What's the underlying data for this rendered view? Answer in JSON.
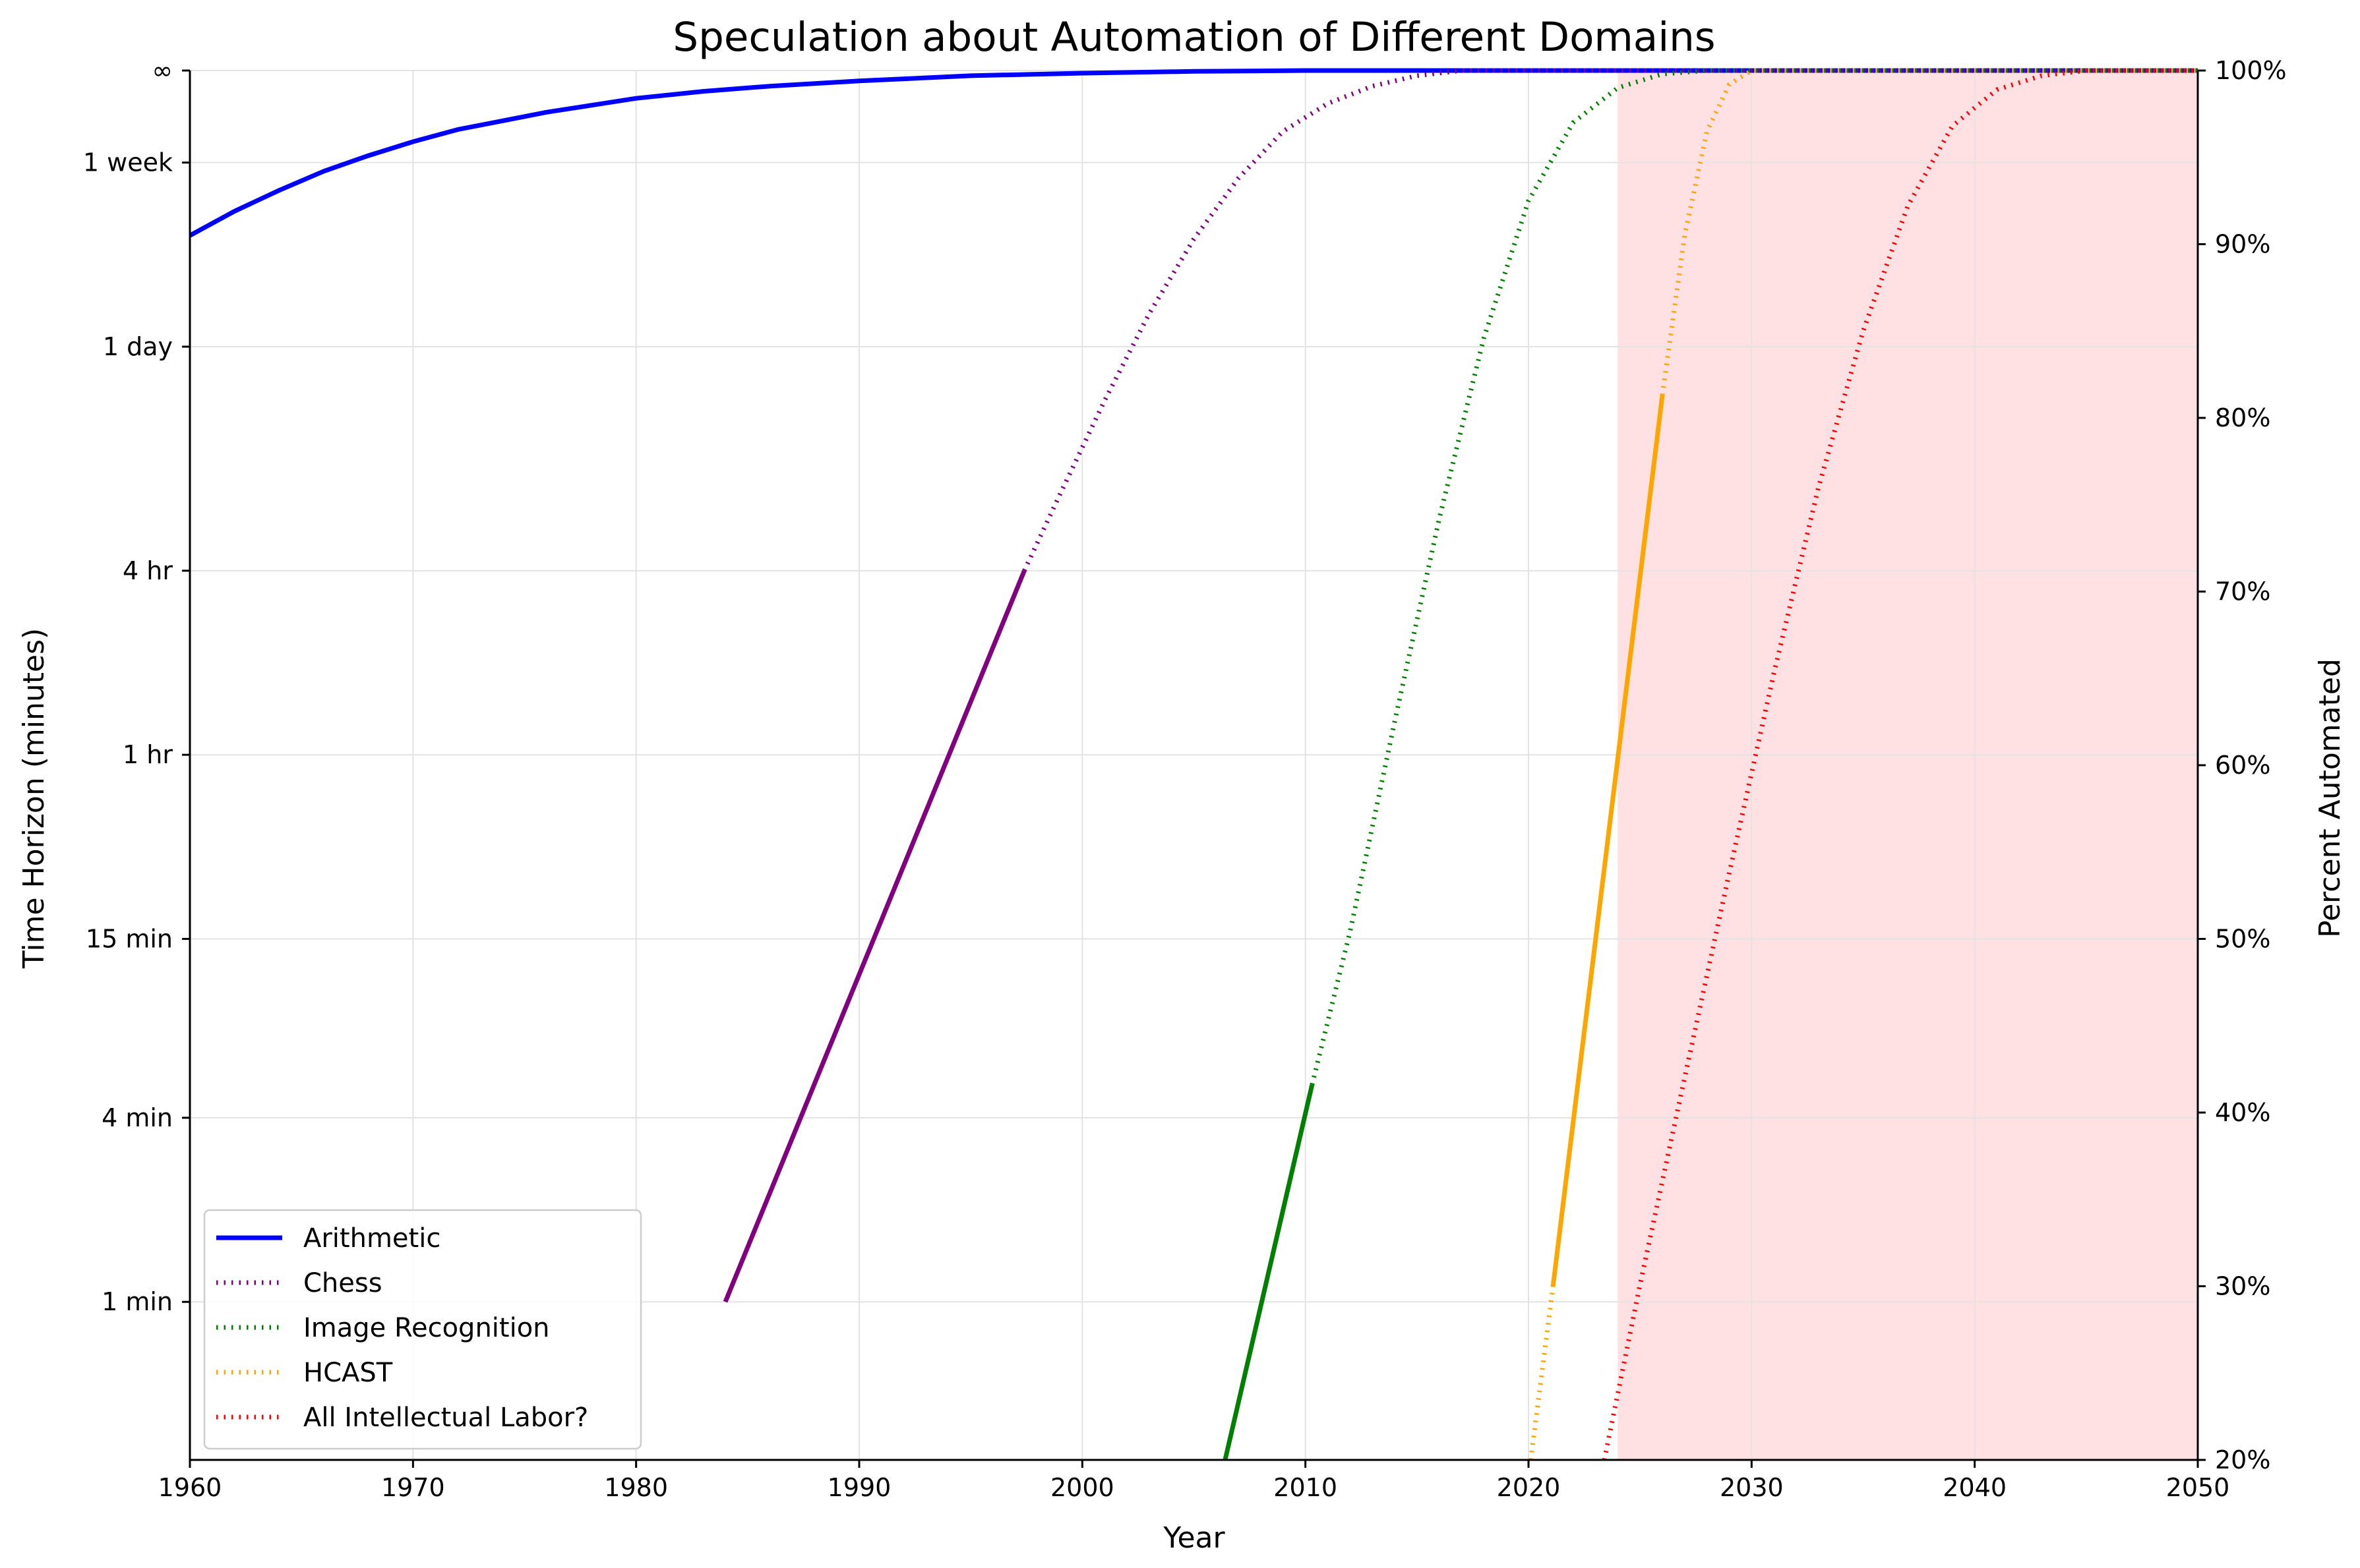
{
  "chart_data": {
    "type": "line",
    "title": "Speculation about Automation of Different Domains",
    "xlabel": "Year",
    "ylabel_left": "Time Horizon (minutes)",
    "ylabel_right": "Percent Automated",
    "xlim": [
      1960,
      2050
    ],
    "x_ticks": [
      1960,
      1970,
      1980,
      1990,
      2000,
      2010,
      2020,
      2030,
      2040,
      2050
    ],
    "y_left_ticks": [
      {
        "label": "∞",
        "pct": 100
      },
      {
        "label": "1 week",
        "pct": 94.7
      },
      {
        "label": "1 day",
        "pct": 84.1
      },
      {
        "label": "4 hr",
        "pct": 71.2
      },
      {
        "label": "1 hr",
        "pct": 60.6
      },
      {
        "label": "15 min",
        "pct": 50.0
      },
      {
        "label": "4 min",
        "pct": 39.7
      },
      {
        "label": "1 min",
        "pct": 29.1
      }
    ],
    "y_right_ticks": [
      {
        "label": "100%",
        "pct": 100
      },
      {
        "label": "90%",
        "pct": 90
      },
      {
        "label": "80%",
        "pct": 80
      },
      {
        "label": "70%",
        "pct": 70
      },
      {
        "label": "60%",
        "pct": 60
      },
      {
        "label": "50%",
        "pct": 50
      },
      {
        "label": "40%",
        "pct": 40
      },
      {
        "label": "30%",
        "pct": 30
      },
      {
        "label": "20%",
        "pct": 20
      }
    ],
    "ylim_right": [
      20,
      100
    ],
    "grid": true,
    "legend_position": "bottom-left",
    "shaded_region": {
      "x": [
        2024,
        2050
      ],
      "color": "#ffe0e3"
    },
    "series": [
      {
        "name": "Arithmetic",
        "color": "#0000ff",
        "legend_style": "solid",
        "segments": [
          {
            "style": "solid",
            "points": [
              [
                1960,
                90.5
              ],
              [
                1962,
                91.9
              ],
              [
                1964,
                93.1
              ],
              [
                1966,
                94.2
              ],
              [
                1968,
                95.1
              ],
              [
                1970,
                95.9
              ],
              [
                1972,
                96.6
              ],
              [
                1974,
                97.1
              ],
              [
                1976,
                97.6
              ],
              [
                1978,
                98.0
              ],
              [
                1980,
                98.4
              ],
              [
                1983,
                98.8
              ],
              [
                1986,
                99.1
              ],
              [
                1990,
                99.4
              ],
              [
                1995,
                99.7
              ],
              [
                2000,
                99.85
              ],
              [
                2005,
                99.95
              ],
              [
                2010,
                100
              ],
              [
                2050,
                100
              ]
            ]
          }
        ]
      },
      {
        "name": "Chess",
        "color": "#800080",
        "legend_style": "dotted",
        "segments": [
          {
            "style": "solid",
            "points": [
              [
                1984,
                29.1
              ],
              [
                1997.4,
                71.2
              ]
            ]
          },
          {
            "style": "dotted",
            "points": [
              [
                1997.4,
                71.2
              ],
              [
                1999,
                75.6
              ],
              [
                2001,
                81.0
              ],
              [
                2003,
                86.0
              ],
              [
                2005,
                90.3
              ],
              [
                2007,
                93.8
              ],
              [
                2009,
                96.5
              ],
              [
                2011,
                98.1
              ],
              [
                2013,
                99.1
              ],
              [
                2015,
                99.7
              ],
              [
                2017,
                100
              ],
              [
                2050,
                100
              ]
            ]
          }
        ]
      },
      {
        "name": "Image Recognition",
        "color": "#008000",
        "legend_style": "dotted",
        "segments": [
          {
            "style": "solid",
            "points": [
              [
                2006.4,
                20
              ],
              [
                2010.3,
                41.6
              ]
            ]
          },
          {
            "style": "dotted",
            "points": [
              [
                2010.3,
                41.6
              ],
              [
                2012,
                50.4
              ],
              [
                2014,
                62.5
              ],
              [
                2016,
                74.2
              ],
              [
                2018,
                84.6
              ],
              [
                2020,
                92.5
              ],
              [
                2022,
                97.0
              ],
              [
                2024,
                99.0
              ],
              [
                2026,
                99.8
              ],
              [
                2028,
                100
              ],
              [
                2050,
                100
              ]
            ]
          }
        ]
      },
      {
        "name": "HCAST",
        "color": "#ffa500",
        "legend_style": "dotted",
        "segments": [
          {
            "style": "dotted",
            "points": [
              [
                2020.1,
                20
              ],
              [
                2021.1,
                30.0
              ]
            ]
          },
          {
            "style": "solid",
            "points": [
              [
                2021.1,
                30.0
              ],
              [
                2026,
                81.3
              ]
            ]
          },
          {
            "style": "dotted",
            "points": [
              [
                2026,
                81.3
              ],
              [
                2027,
                90.5
              ],
              [
                2028,
                96.5
              ],
              [
                2029,
                99.2
              ],
              [
                2030,
                100
              ],
              [
                2050,
                100
              ]
            ]
          }
        ]
      },
      {
        "name": "All Intellectual Labor?",
        "color": "#ff0000",
        "legend_style": "dotted",
        "segments": [
          {
            "style": "dotted",
            "points": [
              [
                2023.4,
                20
              ],
              [
                2025,
                30.1
              ],
              [
                2027,
                42.0
              ],
              [
                2029,
                53.8
              ],
              [
                2031,
                65.3
              ],
              [
                2033,
                76.0
              ],
              [
                2035,
                85.0
              ],
              [
                2037,
                92.2
              ],
              [
                2039,
                96.8
              ],
              [
                2041,
                98.9
              ],
              [
                2043,
                99.7
              ],
              [
                2045,
                100
              ],
              [
                2050,
                100
              ]
            ]
          }
        ]
      }
    ]
  }
}
